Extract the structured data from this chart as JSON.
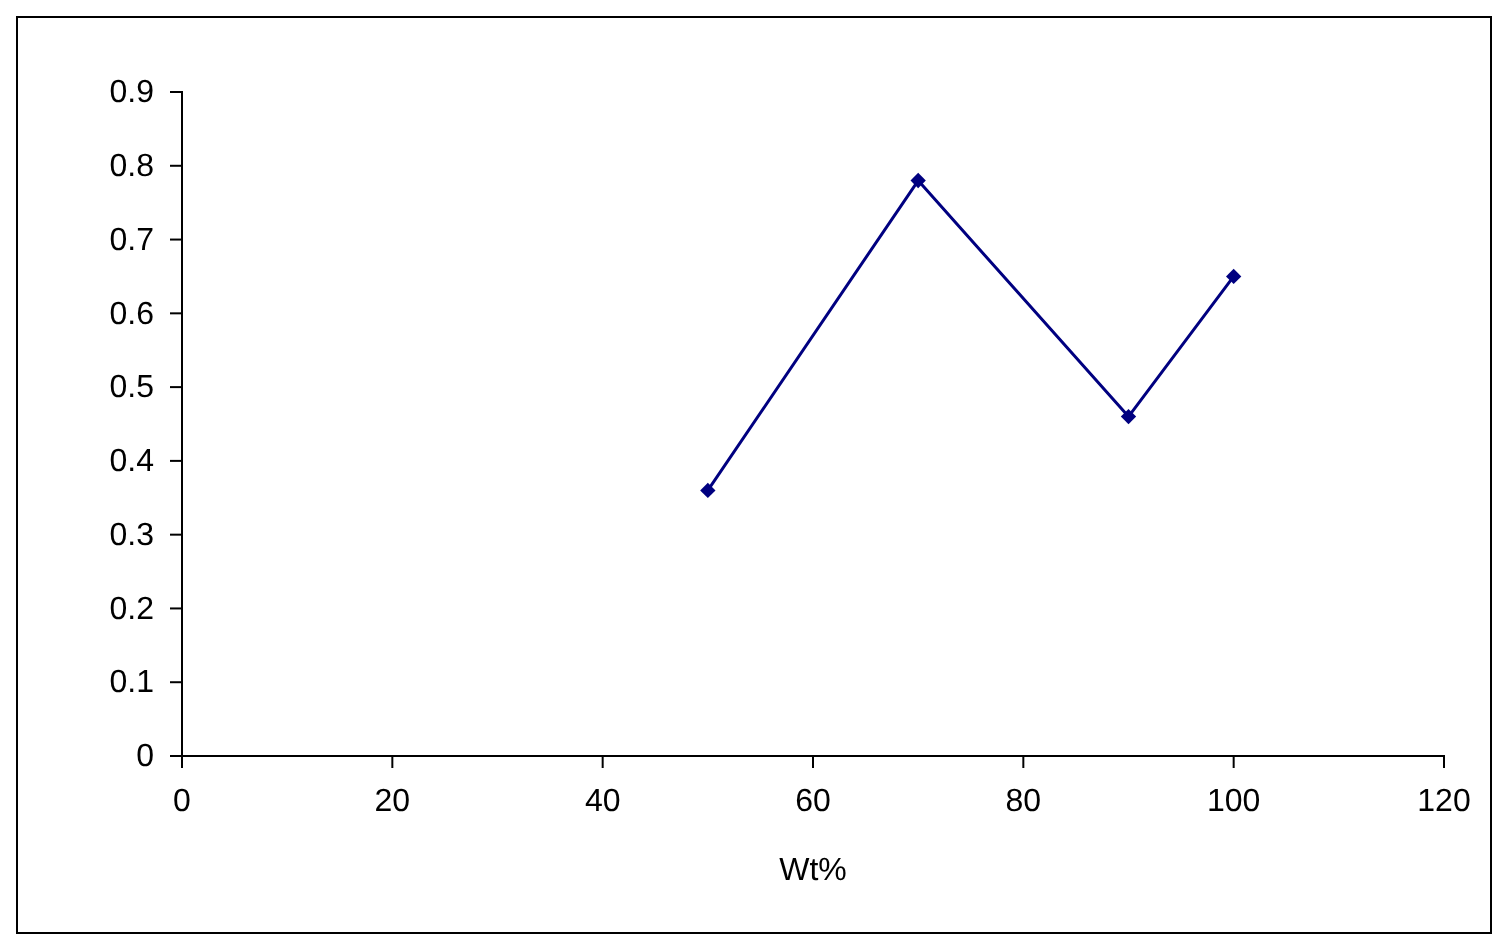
{
  "chart_data": {
    "type": "line",
    "xlabel": "Wt%",
    "x": [
      50,
      70,
      90,
      100
    ],
    "series": [
      {
        "color": "#000080",
        "values": [
          0.36,
          0.78,
          0.46,
          0.65
        ]
      }
    ],
    "xlim": [
      0,
      120
    ],
    "xticks": [
      0,
      20,
      40,
      60,
      80,
      100,
      120
    ],
    "ylim": [
      0,
      0.9
    ],
    "yticks": [
      0,
      0.1,
      0.2,
      0.3,
      0.4,
      0.5,
      0.6,
      0.7,
      0.8,
      0.9
    ],
    "marker": "diamond",
    "line_style": "solid"
  }
}
